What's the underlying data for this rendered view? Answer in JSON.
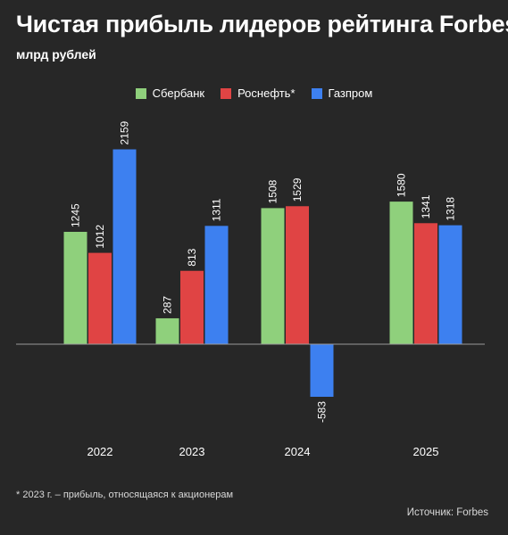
{
  "header": {
    "title": "Чистая прибыль лидеров рейтинга Forbes",
    "subtitle": "млрд рублей"
  },
  "footer": {
    "footnote": "* 2023 г. – прибыль, относящаяся к акционерам",
    "source": "Источник: Forbes"
  },
  "colors": {
    "background": "#272727",
    "axis": "#9a9a9a"
  },
  "chart_data": {
    "type": "bar",
    "title": "Чистая прибыль лидеров рейтинга Forbes",
    "subtitle": "млрд рублей",
    "categories": [
      "2022",
      "2023",
      "2024",
      "2025"
    ],
    "series": [
      {
        "name": "Сбербанк",
        "color": "#8fd07c",
        "values": [
          1245,
          287,
          1508,
          1580
        ]
      },
      {
        "name": "Роснефть*",
        "color": "#e04444",
        "values": [
          1012,
          813,
          1529,
          1341
        ]
      },
      {
        "name": "Газпром",
        "color": "#3d80f0",
        "values": [
          2159,
          1311,
          -583,
          1318
        ]
      }
    ],
    "ylim": [
      -700,
      2500
    ],
    "grid": false,
    "legend_position": "top-center",
    "data_labels": "rotated-vertical"
  }
}
